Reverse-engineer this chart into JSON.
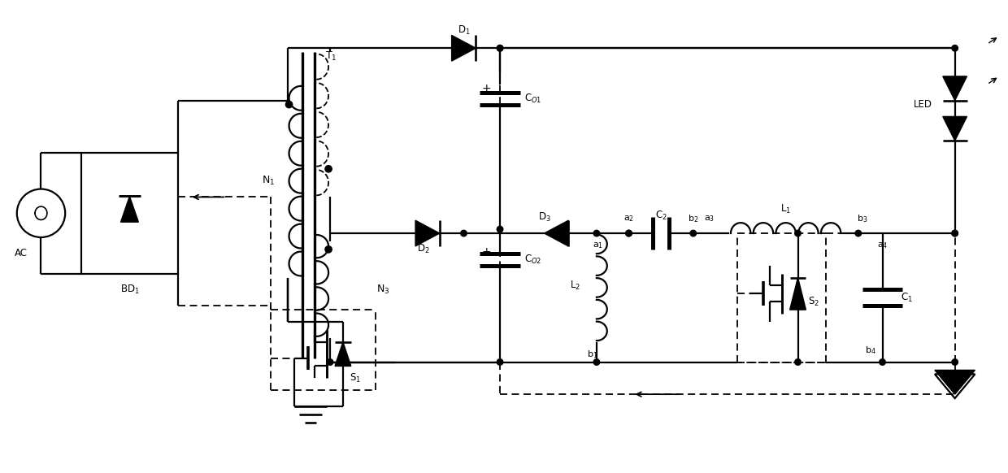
{
  "bg_color": "#ffffff",
  "figsize": [
    12.4,
    5.82
  ],
  "dpi": 100,
  "xlim": [
    0,
    124
  ],
  "ylim": [
    0,
    58.2
  ]
}
